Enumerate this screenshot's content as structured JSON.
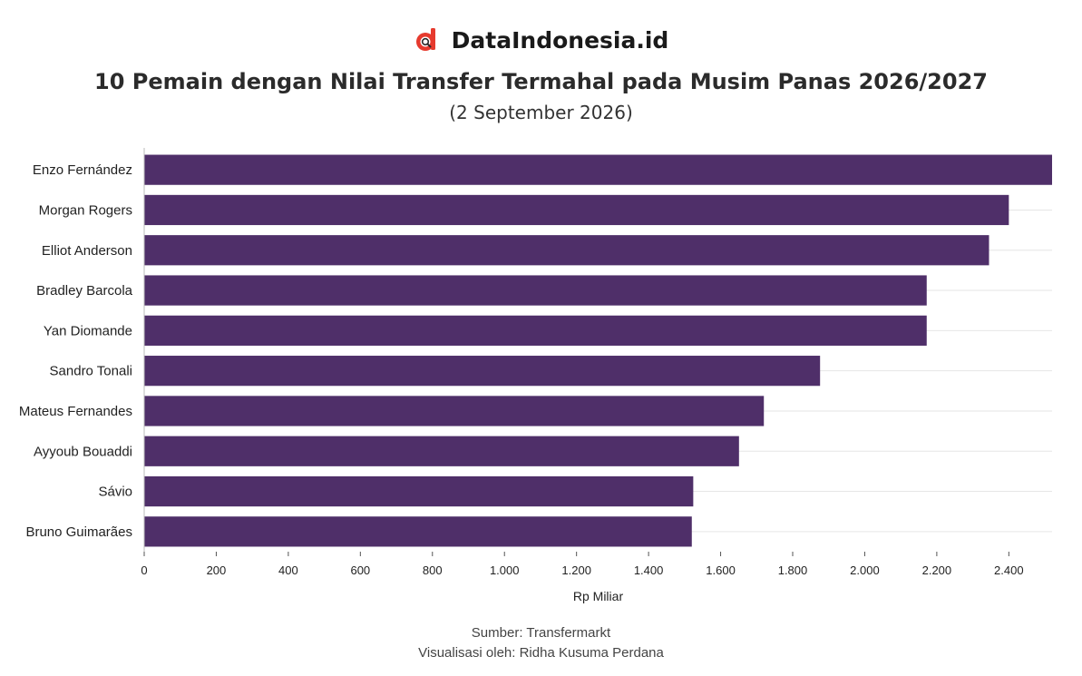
{
  "brand": {
    "name": "DataIndonesia.id",
    "logo_color": "#e63a2e",
    "logo_icon": "magnifier-d-logo"
  },
  "chart_data": {
    "type": "bar",
    "orientation": "horizontal",
    "title": "10 Pemain dengan Nilai Transfer Termahal pada Musim Panas 2026/2027",
    "subtitle": "(2 September 2026)",
    "xlabel": "Rp Miliar",
    "ylabel": "",
    "categories": [
      "Enzo Fernández",
      "Morgan Rogers",
      "Elliot Anderson",
      "Bradley Barcola",
      "Yan Diomande",
      "Sandro Tonali",
      "Mateus Fernandes",
      "Ayyoub Bouaddi",
      "Sávio",
      "Bruno Guimarães"
    ],
    "values": [
      2520,
      2400,
      2345,
      2172,
      2172,
      1876,
      1720,
      1651,
      1524,
      1520
    ],
    "xlim": [
      0,
      2520
    ],
    "xticks": [
      0,
      200,
      400,
      600,
      800,
      1000,
      1200,
      1400,
      1600,
      1800,
      2000,
      2200,
      2400
    ],
    "xtick_labels": [
      "0",
      "200",
      "400",
      "600",
      "800",
      "1.000",
      "1.200",
      "1.400",
      "1.600",
      "1.800",
      "2.000",
      "2.200",
      "2.400"
    ],
    "bar_color": "#4f2f69",
    "grid": true,
    "legend": "none"
  },
  "footer": {
    "source": "Sumber: Transfermarkt",
    "credit": "Visualisasi oleh: Ridha Kusuma Perdana"
  }
}
